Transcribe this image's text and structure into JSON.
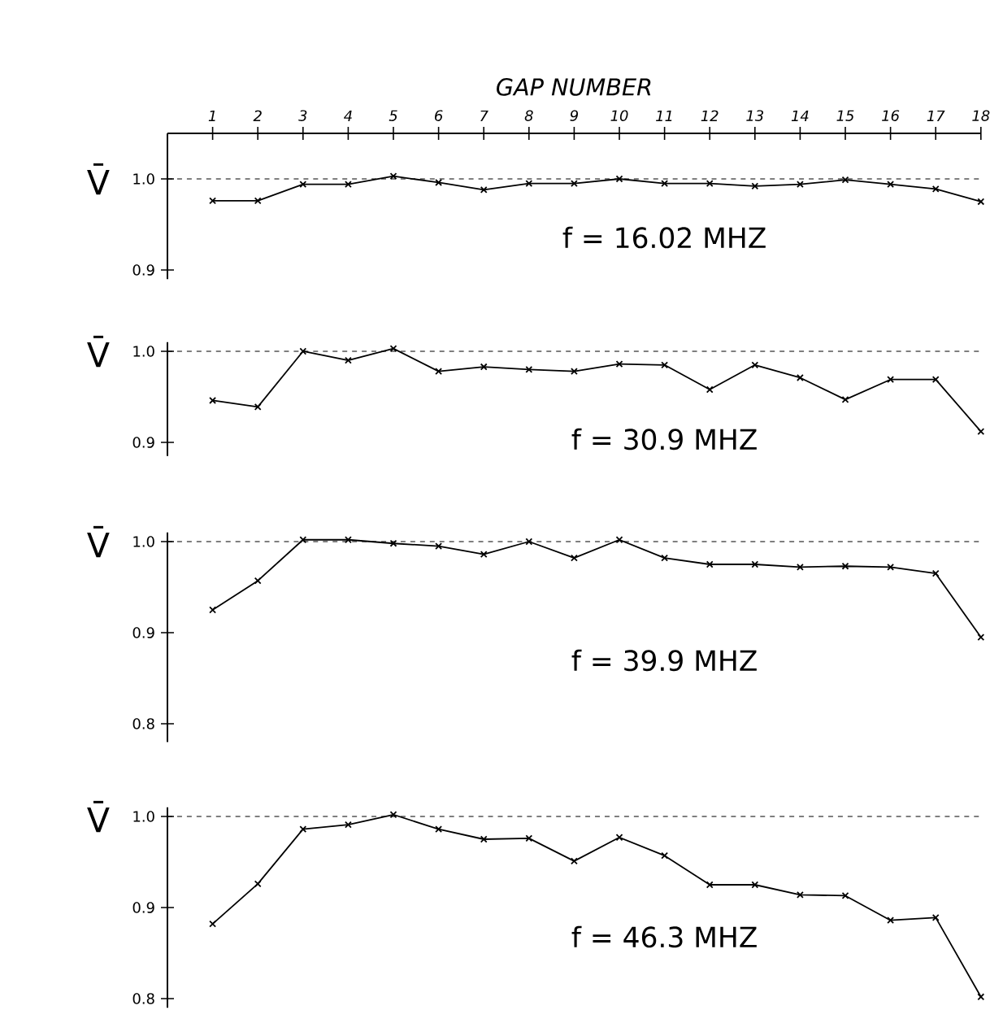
{
  "chart_data": [
    {
      "type": "line",
      "xlabel": "GAP NUMBER",
      "ylabel": "V̄",
      "x": [
        1,
        2,
        3,
        4,
        5,
        6,
        7,
        8,
        9,
        10,
        11,
        12,
        13,
        14,
        15,
        16,
        17,
        18
      ],
      "series": [
        {
          "color": "#000000",
          "values": [
            0.976,
            0.976,
            0.994,
            0.994,
            1.003,
            0.996,
            0.988,
            0.995,
            0.995,
            1.0,
            0.995,
            0.995,
            0.992,
            0.994,
            0.999,
            0.994,
            0.989,
            0.975
          ]
        }
      ],
      "xlim": [
        0,
        18
      ],
      "xticks": [
        1,
        2,
        3,
        4,
        5,
        6,
        7,
        8,
        9,
        10,
        11,
        12,
        13,
        14,
        15,
        16,
        17,
        18
      ],
      "ylim": [
        0.89,
        1.05
      ],
      "yticks": [
        {
          "value": 0.9,
          "label": "0.9"
        },
        {
          "value": 1.0,
          "label": "1.0"
        }
      ],
      "ref_lines": [
        {
          "axis": "y",
          "value": 1.0,
          "color": "#000000",
          "line_style": "dashed"
        }
      ],
      "annotations": [
        "f = 16.02 MHZ"
      ],
      "marker": "cross",
      "line_style": "solid"
    },
    {
      "type": "line",
      "ylabel": "V̄",
      "x": [
        1,
        2,
        3,
        4,
        5,
        6,
        7,
        8,
        9,
        10,
        11,
        12,
        13,
        14,
        15,
        16,
        17,
        18
      ],
      "series": [
        {
          "color": "#000000",
          "values": [
            0.946,
            0.939,
            1.0,
            0.99,
            1.003,
            0.978,
            0.983,
            0.98,
            0.978,
            0.986,
            0.985,
            0.958,
            0.985,
            0.971,
            0.947,
            0.969,
            0.969,
            0.912
          ]
        }
      ],
      "xlim": [
        0,
        18
      ],
      "ylim": [
        0.885,
        1.01
      ],
      "yticks": [
        {
          "value": 0.9,
          "label": "0.9"
        },
        {
          "value": 1.0,
          "label": "1.0"
        }
      ],
      "ref_lines": [
        {
          "axis": "y",
          "value": 1.0,
          "color": "#000000",
          "line_style": "dashed"
        }
      ],
      "annotations": [
        "f = 30.9 MHZ"
      ],
      "marker": "cross",
      "line_style": "solid",
      "tick_labels": "y"
    },
    {
      "type": "line",
      "ylabel": "V̄",
      "x": [
        1,
        2,
        3,
        4,
        5,
        6,
        7,
        8,
        9,
        10,
        11,
        12,
        13,
        14,
        15,
        16,
        17,
        18
      ],
      "series": [
        {
          "color": "#000000",
          "values": [
            0.925,
            0.957,
            1.002,
            1.002,
            0.998,
            0.995,
            0.986,
            1.0,
            0.982,
            1.002,
            0.982,
            0.975,
            0.975,
            0.972,
            0.973,
            0.972,
            0.965,
            0.895
          ]
        }
      ],
      "xlim": [
        0,
        18
      ],
      "ylim": [
        0.78,
        1.01
      ],
      "yticks": [
        {
          "value": 0.8,
          "label": "0.8"
        },
        {
          "value": 0.9,
          "label": "0.9"
        },
        {
          "value": 1.0,
          "label": "1.0"
        }
      ],
      "ref_lines": [
        {
          "axis": "y",
          "value": 1.0,
          "color": "#000000",
          "line_style": "dashed"
        }
      ],
      "annotations": [
        "f = 39.9 MHZ"
      ],
      "marker": "cross",
      "line_style": "solid",
      "tick_labels": "y"
    },
    {
      "type": "line",
      "ylabel": "V̄",
      "x": [
        1,
        2,
        3,
        4,
        5,
        6,
        7,
        8,
        9,
        10,
        11,
        12,
        13,
        14,
        15,
        16,
        17,
        18
      ],
      "series": [
        {
          "color": "#000000",
          "values": [
            0.882,
            0.926,
            0.986,
            0.991,
            1.002,
            0.986,
            0.975,
            0.976,
            0.951,
            0.977,
            0.957,
            0.925,
            0.925,
            0.914,
            0.913,
            0.886,
            0.889,
            0.802
          ]
        }
      ],
      "xlim": [
        0,
        18
      ],
      "ylim": [
        0.79,
        1.01
      ],
      "yticks": [
        {
          "value": 0.8,
          "label": "0.8"
        },
        {
          "value": 0.9,
          "label": "0.9"
        },
        {
          "value": 1.0,
          "label": "1.0"
        }
      ],
      "ref_lines": [
        {
          "axis": "y",
          "value": 1.0,
          "color": "#000000",
          "line_style": "dashed"
        }
      ],
      "annotations": [
        "f = 46.3 MHZ"
      ],
      "marker": "cross",
      "line_style": "solid",
      "tick_labels": "y"
    }
  ]
}
